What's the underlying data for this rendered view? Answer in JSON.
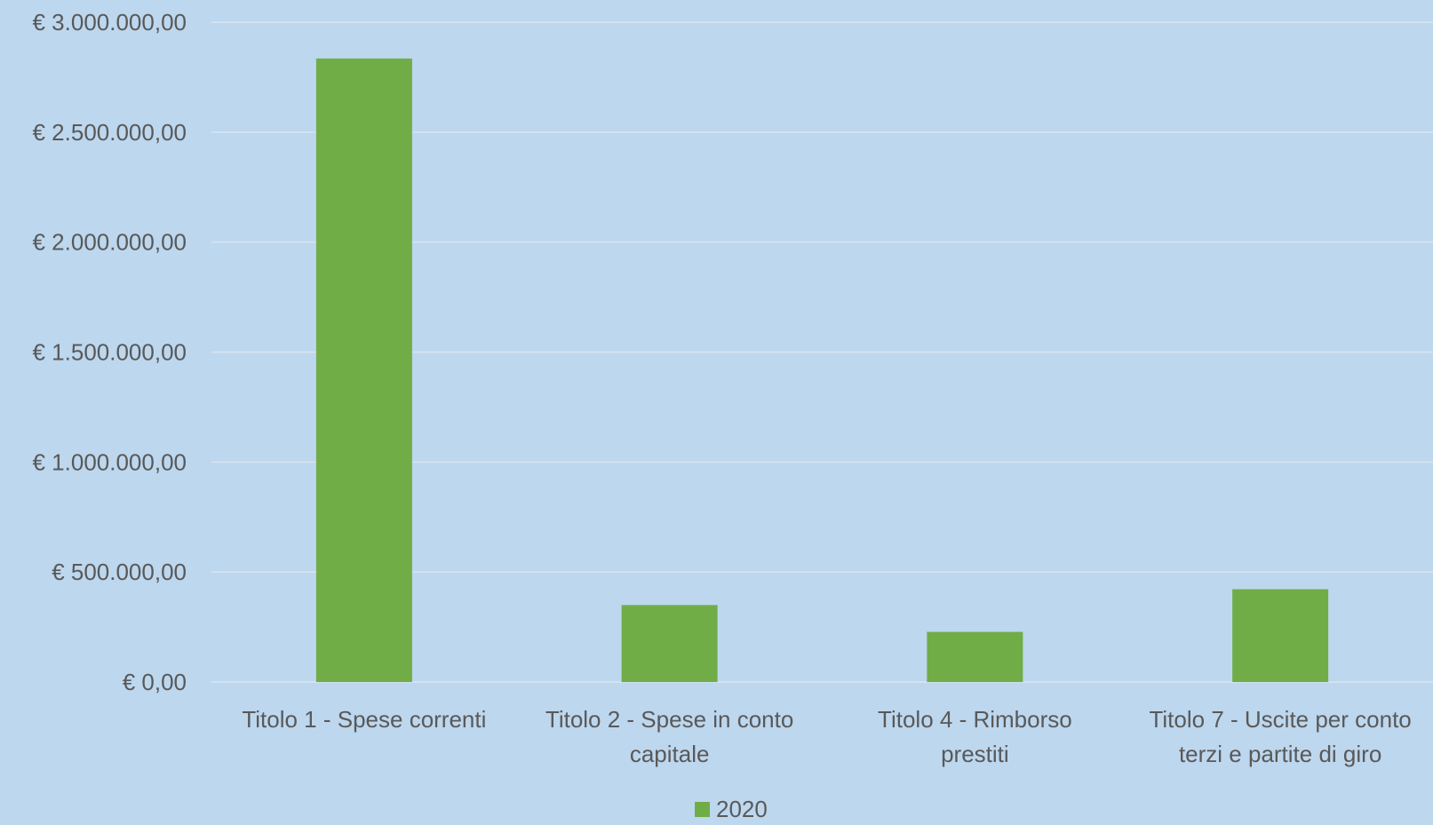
{
  "chart_data": {
    "type": "bar",
    "title": "",
    "xlabel": "",
    "ylabel": "",
    "categories": [
      [
        "Titolo 1 - Spese correnti"
      ],
      [
        "Titolo 2 - Spese in conto",
        "capitale"
      ],
      [
        "Titolo 4 - Rimborso",
        "prestiti"
      ],
      [
        "Titolo 7 - Uscite per conto",
        "terzi e partite di giro"
      ]
    ],
    "series": [
      {
        "name": "2020",
        "values": [
          2835000,
          350000,
          228000,
          422000
        ]
      }
    ],
    "ylim": [
      0,
      3000000
    ],
    "yticks": [
      0,
      500000,
      1000000,
      1500000,
      2000000,
      2500000,
      3000000
    ],
    "ytick_labels": [
      "€ 0,00",
      "€ 500.000,00",
      "€ 1.000.000,00",
      "€ 1.500.000,00",
      "€ 2.000.000,00",
      "€ 2.500.000,00",
      "€ 3.000.000,00"
    ],
    "grid": true,
    "legend": "bottom-center",
    "colors": {
      "background": "#bdd7ee",
      "bar": "#70ad47",
      "grid": "#d9e5f0",
      "text": "#595959"
    }
  }
}
